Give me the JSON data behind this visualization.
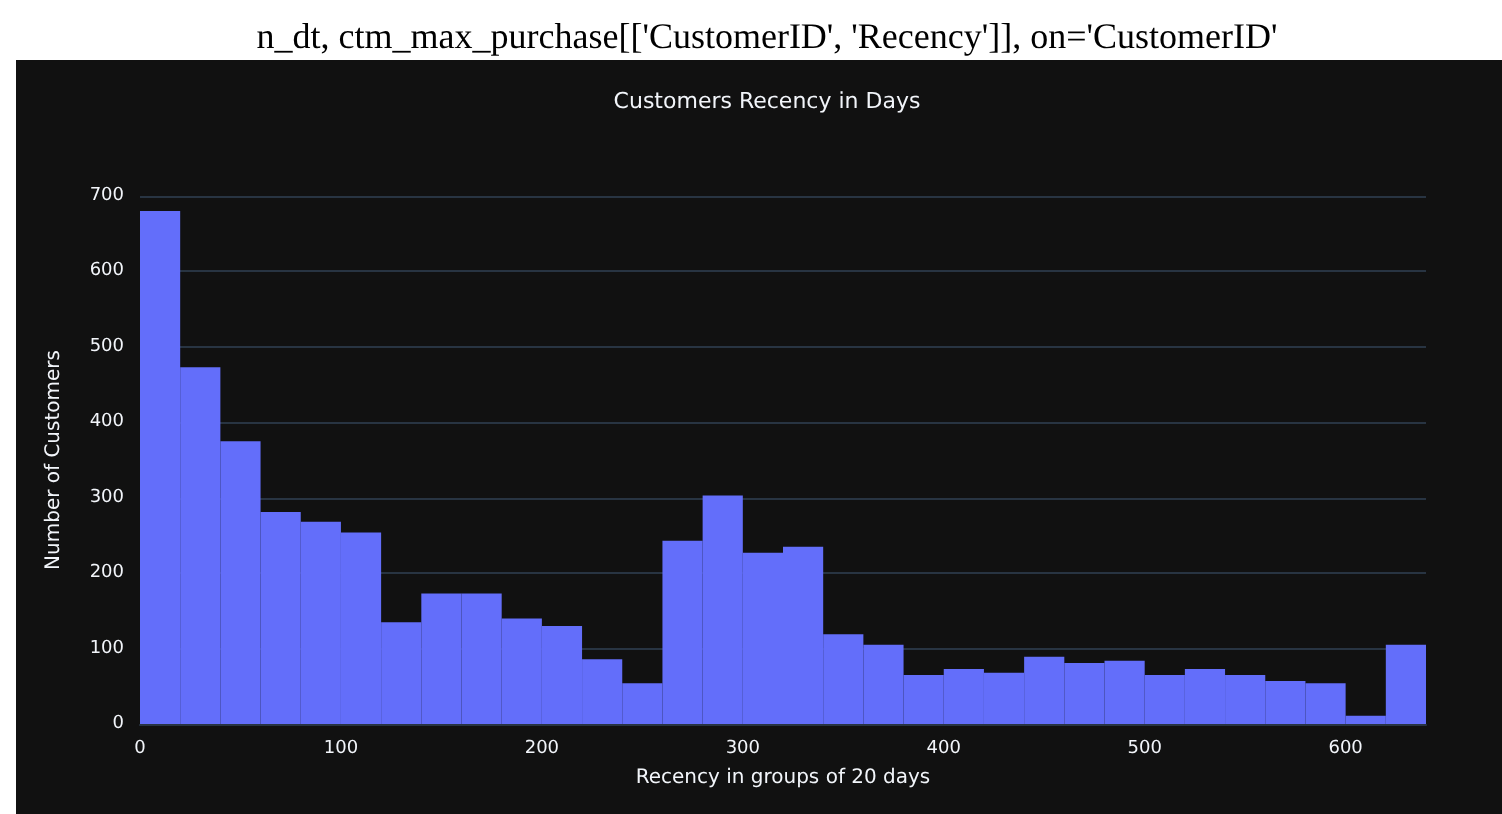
{
  "chart_data": {
    "type": "histogram",
    "title": "Customers Recency in Days",
    "xlabel": "Recency in groups of 20 days",
    "ylabel": "Number of Customers",
    "annotations": [
      "n_dt, ctm_max_purchase[['CustomerID', 'Recency']], on='CustomerID'"
    ],
    "bins": [
      0,
      20,
      40,
      60,
      80,
      100,
      120,
      140,
      160,
      180,
      200,
      220,
      240,
      260,
      280,
      300,
      320,
      340,
      360,
      380,
      400,
      420,
      440,
      460,
      480,
      500,
      520,
      540,
      560,
      580,
      600,
      620,
      640
    ],
    "values": [
      680,
      473,
      375,
      281,
      268,
      254,
      135,
      173,
      173,
      140,
      130,
      86,
      54,
      243,
      303,
      227,
      235,
      119,
      105,
      65,
      73,
      68,
      89,
      81,
      84,
      65,
      73,
      65,
      57,
      54,
      11,
      105
    ],
    "color": "#636efa",
    "xlim": [
      0,
      640
    ],
    "ylim": [
      0,
      700
    ],
    "xticks": [
      0,
      100,
      200,
      300,
      400,
      500,
      600
    ],
    "yticks": [
      0,
      100,
      200,
      300,
      400,
      500,
      600,
      700
    ],
    "grid": "y"
  }
}
